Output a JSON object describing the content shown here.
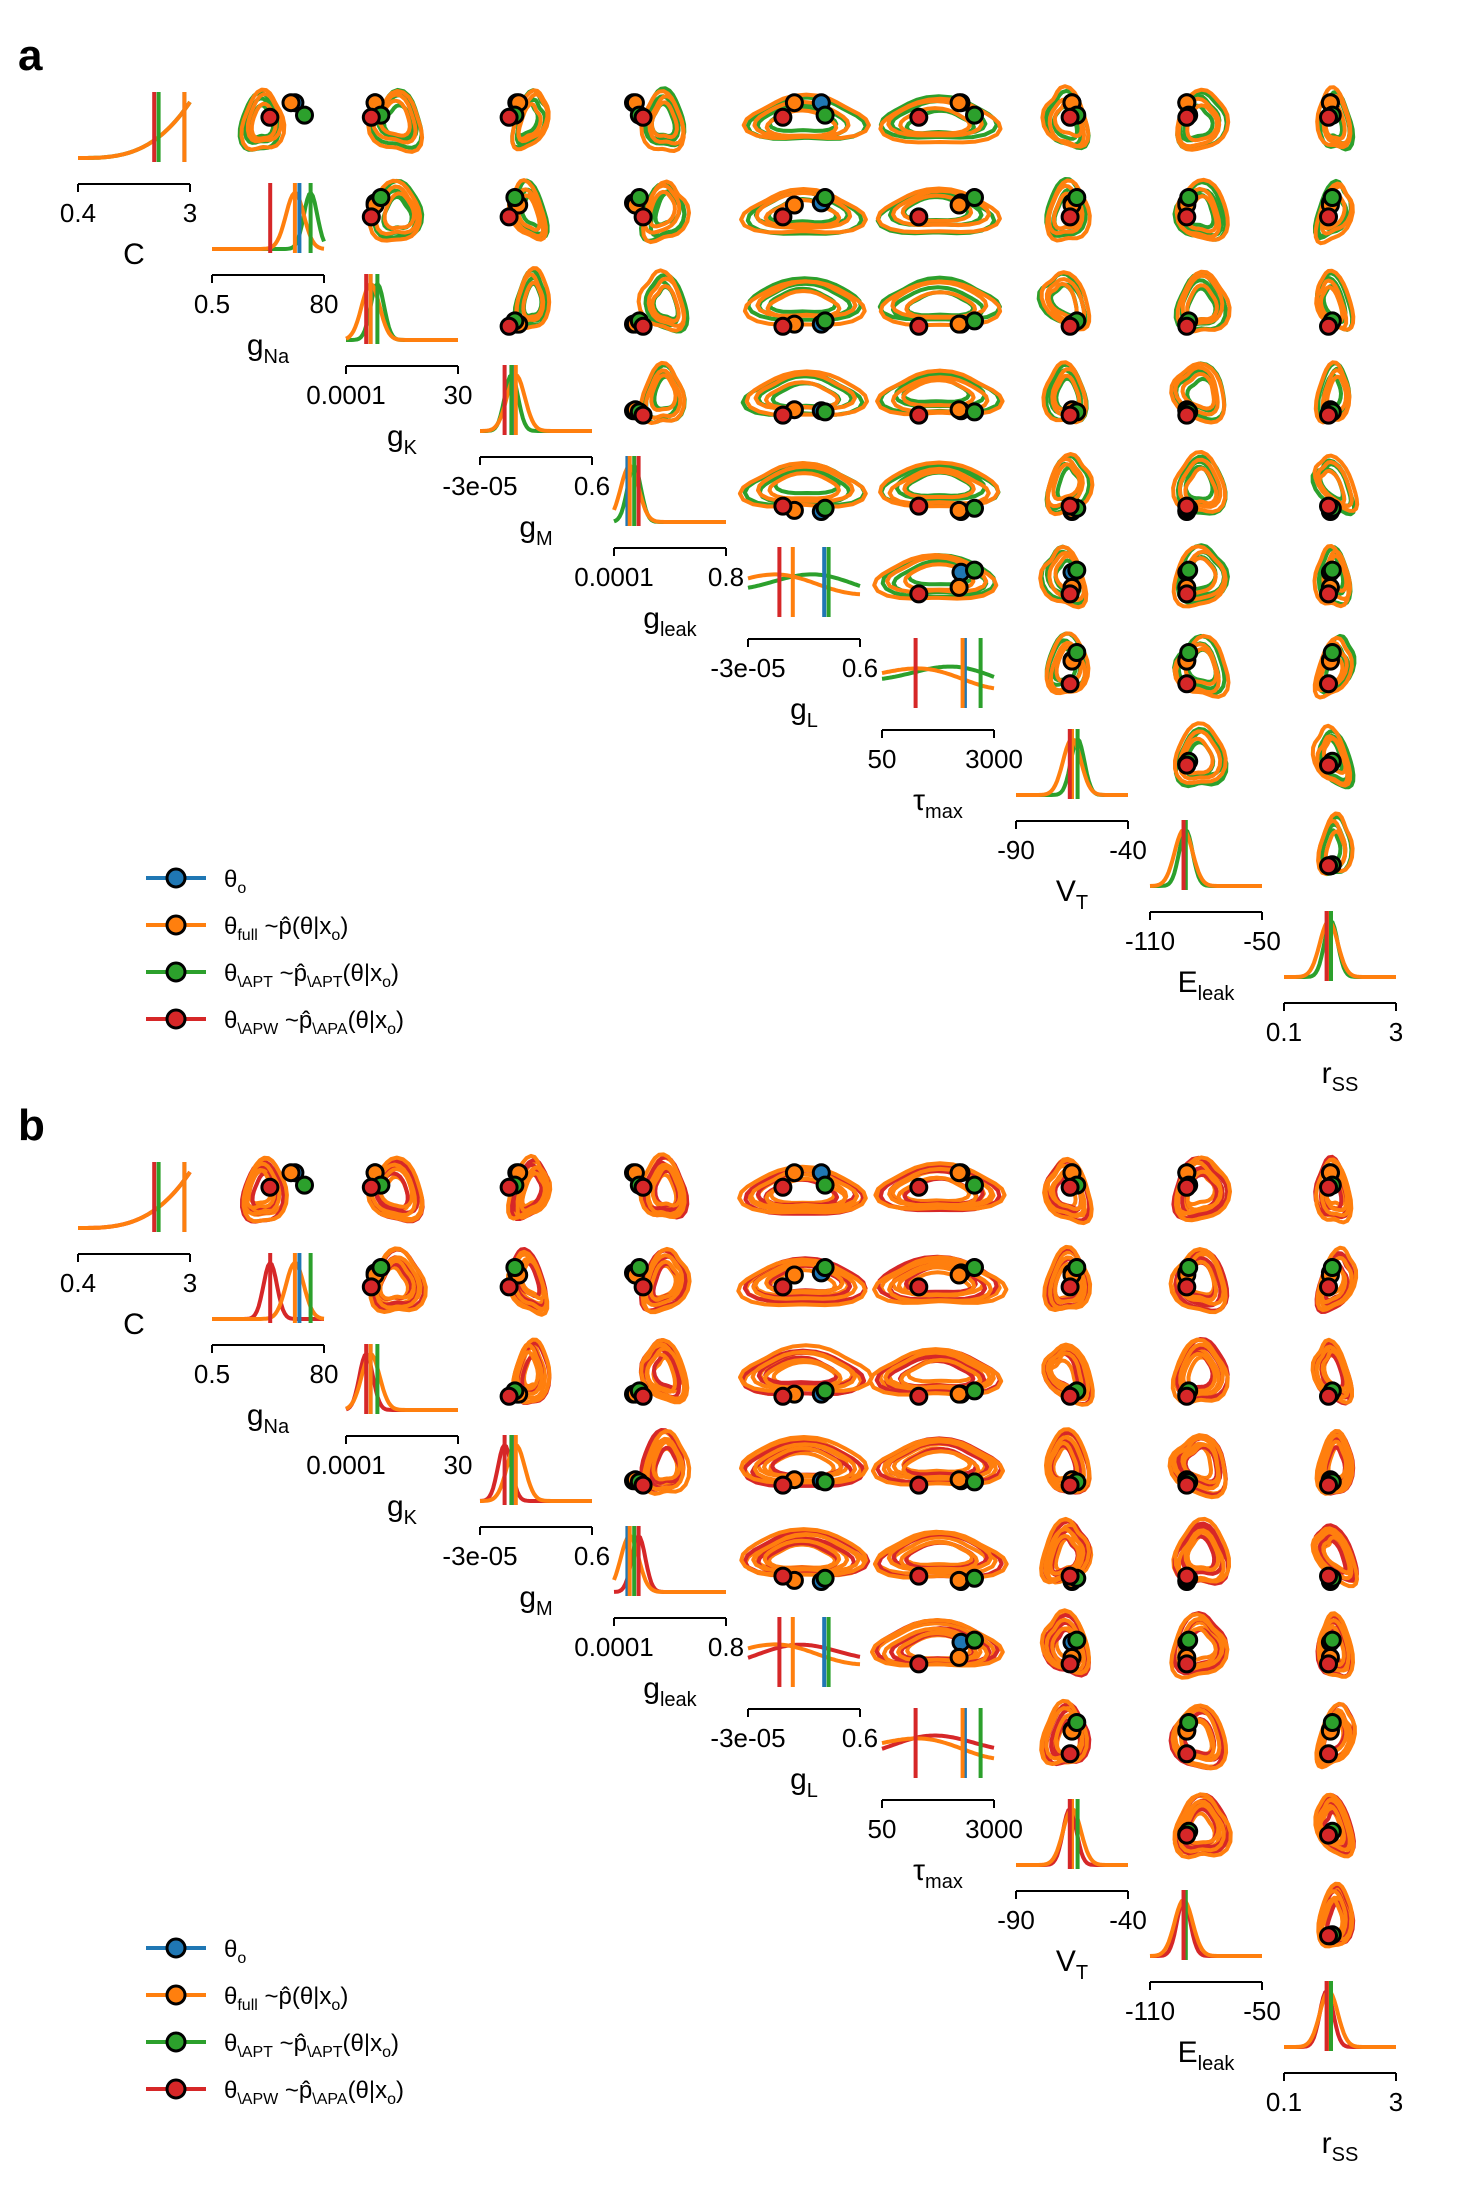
{
  "colors": {
    "theta_o": "#1f77b4",
    "full": "#ff7f0e",
    "apt": "#2ca02c",
    "apw": "#d62728",
    "marker_edge": "#000000"
  },
  "legend": [
    {
      "key": "theta_o",
      "main": "θ",
      "sub": "o",
      "rest": ""
    },
    {
      "key": "full",
      "main": "θ",
      "sub": "full",
      "rest": " ~p̂(θ|x",
      "rest_sub": "o",
      "rest_tail": ")"
    },
    {
      "key": "apt",
      "main": "θ",
      "sub": "\\APT",
      "rest": " ~p̂",
      "rest_sub": "\\APT",
      "rest_tail2": "(θ|x",
      "rest_sub2": "o",
      "rest_tail": ")"
    },
    {
      "key": "apw",
      "main": "θ",
      "sub": "\\APW",
      "rest": " ~p̂",
      "rest_sub": "\\APA",
      "rest_tail2": "(θ|x",
      "rest_sub2": "o",
      "rest_tail": ")"
    }
  ],
  "chart_data": [
    {
      "panel": "a",
      "type": "pairplot",
      "parameters": [
        {
          "name": "C",
          "sub": "",
          "range": [
            "0.4",
            "3"
          ]
        },
        {
          "name": "g",
          "sub": "Na",
          "range": [
            "0.5",
            "80"
          ]
        },
        {
          "name": "g",
          "sub": "K",
          "range": [
            "0.0001",
            "30"
          ]
        },
        {
          "name": "g",
          "sub": "M",
          "range": [
            "-3e-05",
            "0.6"
          ]
        },
        {
          "name": "g",
          "sub": "leak",
          "range": [
            "0.0001",
            "0.8"
          ]
        },
        {
          "name": "g",
          "sub": "L",
          "range": [
            "-3e-05",
            "0.6"
          ]
        },
        {
          "name": "τ",
          "sub": "max",
          "range": [
            "50",
            "3000"
          ]
        },
        {
          "name": "V",
          "sub": "T",
          "range": [
            "-90",
            "-40"
          ]
        },
        {
          "name": "E",
          "sub": "leak",
          "range": [
            "-110",
            "-50"
          ]
        },
        {
          "name": "r",
          "sub": "SS",
          "range": [
            "0.1",
            "3"
          ]
        }
      ],
      "true_values": [
        0.95,
        0.78,
        0.22,
        0.3,
        0.12,
        0.68,
        0.74,
        0.5,
        0.3,
        0.4
      ],
      "estimates": {
        "full": [
          0.95,
          0.74,
          0.22,
          0.32,
          0.14,
          0.4,
          0.72,
          0.5,
          0.3,
          0.4
        ],
        "apt": [
          0.72,
          0.88,
          0.28,
          0.28,
          0.18,
          0.72,
          0.88,
          0.55,
          0.32,
          0.42
        ],
        "apw": [
          0.68,
          0.52,
          0.18,
          0.22,
          0.22,
          0.28,
          0.3,
          0.48,
          0.3,
          0.38
        ]
      }
    },
    {
      "panel": "b",
      "type": "pairplot",
      "parameters": [
        {
          "name": "C",
          "sub": "",
          "range": [
            "0.4",
            "3"
          ]
        },
        {
          "name": "g",
          "sub": "Na",
          "range": [
            "0.5",
            "80"
          ]
        },
        {
          "name": "g",
          "sub": "K",
          "range": [
            "0.0001",
            "30"
          ]
        },
        {
          "name": "g",
          "sub": "M",
          "range": [
            "-3e-05",
            "0.6"
          ]
        },
        {
          "name": "g",
          "sub": "leak",
          "range": [
            "0.0001",
            "0.8"
          ]
        },
        {
          "name": "g",
          "sub": "L",
          "range": [
            "-3e-05",
            "0.6"
          ]
        },
        {
          "name": "τ",
          "sub": "max",
          "range": [
            "50",
            "3000"
          ]
        },
        {
          "name": "V",
          "sub": "T",
          "range": [
            "-90",
            "-40"
          ]
        },
        {
          "name": "E",
          "sub": "leak",
          "range": [
            "-110",
            "-50"
          ]
        },
        {
          "name": "r",
          "sub": "SS",
          "range": [
            "0.1",
            "3"
          ]
        }
      ],
      "true_values": [
        0.95,
        0.78,
        0.22,
        0.3,
        0.12,
        0.68,
        0.74,
        0.5,
        0.3,
        0.4
      ],
      "estimates": {
        "full": [
          0.95,
          0.74,
          0.22,
          0.32,
          0.14,
          0.4,
          0.72,
          0.5,
          0.3,
          0.4
        ],
        "apt": [
          0.72,
          0.88,
          0.28,
          0.28,
          0.18,
          0.72,
          0.88,
          0.55,
          0.32,
          0.42
        ],
        "apw": [
          0.68,
          0.52,
          0.18,
          0.22,
          0.22,
          0.28,
          0.3,
          0.48,
          0.3,
          0.38
        ]
      }
    }
  ]
}
